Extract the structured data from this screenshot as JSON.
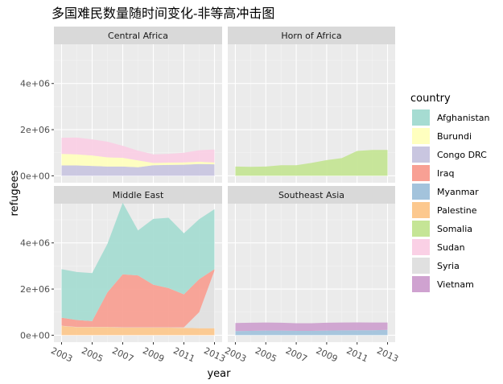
{
  "title": "多国难民数量随时间变化-非等高冲击图",
  "chart_data": {
    "type": "area",
    "facet_layout": "2x2",
    "xlabel": "year",
    "ylabel": "refugees",
    "x": [
      2003,
      2004,
      2005,
      2006,
      2007,
      2008,
      2009,
      2010,
      2011,
      2012,
      2013
    ],
    "x_tick_labels": [
      "2003",
      "2005",
      "2007",
      "2009",
      "2011",
      "2013"
    ],
    "x_ticks": [
      2003,
      2005,
      2007,
      2009,
      2011,
      2013
    ],
    "y_ticks": [
      0,
      2000000,
      4000000
    ],
    "y_tick_labels": [
      "0e+00",
      "2e+06",
      "4e+06"
    ],
    "ylim": [
      -300000,
      5700000
    ],
    "grid": true,
    "legend": {
      "title": "country",
      "position": "right",
      "items": [
        {
          "name": "Afghanistan",
          "color": "#a6dcd2"
        },
        {
          "name": "Burundi",
          "color": "#ffffbf"
        },
        {
          "name": "Congo DRC",
          "color": "#c9c6e0"
        },
        {
          "name": "Iraq",
          "color": "#f8a094"
        },
        {
          "name": "Myanmar",
          "color": "#a3c3dc"
        },
        {
          "name": "Palestine",
          "color": "#fcc88e"
        },
        {
          "name": "Somalia",
          "color": "#c5e596"
        },
        {
          "name": "Sudan",
          "color": "#fad0e5"
        },
        {
          "name": "Syria",
          "color": "#e0e0e0"
        },
        {
          "name": "Vietnam",
          "color": "#cfa2d0"
        }
      ]
    },
    "panels": [
      {
        "name": "Central Africa",
        "series": [
          {
            "country": "Burundi",
            "values": [
              500000,
              480000,
              450000,
              400000,
              380000,
              300000,
              100000,
              100000,
              100000,
              100000,
              80000
            ]
          },
          {
            "country": "Congo DRC",
            "values": [
              450000,
              450000,
              430000,
              400000,
              400000,
              370000,
              460000,
              470000,
              480000,
              510000,
              500000
            ]
          },
          {
            "country": "Sudan",
            "values": [
              700000,
              730000,
              700000,
              680000,
              520000,
              420000,
              370000,
              380000,
              420000,
              500000,
              560000
            ]
          }
        ],
        "order": [
          "Congo DRC",
          "Burundi",
          "Sudan"
        ]
      },
      {
        "name": "Horn of Africa",
        "series": [
          {
            "country": "Somalia",
            "values": [
              400000,
              390000,
              400000,
              460000,
              460000,
              560000,
              680000,
              770000,
              1080000,
              1120000,
              1120000
            ]
          }
        ],
        "order": [
          "Somalia"
        ]
      },
      {
        "name": "Middle East",
        "series": [
          {
            "country": "Afghanistan",
            "values": [
              2100000,
              2080000,
              2080000,
              2100000,
              3100000,
              1950000,
              2850000,
              3050000,
              2650000,
              2600000,
              2600000
            ]
          },
          {
            "country": "Iraq",
            "values": [
              350000,
              300000,
              250000,
              1500000,
              2300000,
              2250000,
              1850000,
              1700000,
              1430000,
              1430000,
              60000
            ]
          },
          {
            "country": "Palestine",
            "values": [
              400000,
              350000,
              350000,
              350000,
              330000,
              330000,
              330000,
              330000,
              320000,
              300000,
              300000
            ]
          },
          {
            "country": "Syria",
            "values": [
              10000,
              10000,
              10000,
              10000,
              10000,
              10000,
              10000,
              10000,
              20000,
              700000,
              2500000
            ]
          }
        ],
        "order": [
          "Palestine",
          "Syria",
          "Iraq",
          "Afghanistan"
        ]
      },
      {
        "name": "Southeast Asia",
        "series": [
          {
            "country": "Myanmar",
            "values": [
              180000,
              190000,
              200000,
              200000,
              190000,
              190000,
              200000,
              210000,
              215000,
              215000,
              230000
            ]
          },
          {
            "country": "Vietnam",
            "values": [
              350000,
              350000,
              350000,
              340000,
              330000,
              330000,
              340000,
              340000,
              340000,
              335000,
              320000
            ]
          }
        ],
        "order": [
          "Myanmar",
          "Vietnam"
        ]
      }
    ]
  }
}
